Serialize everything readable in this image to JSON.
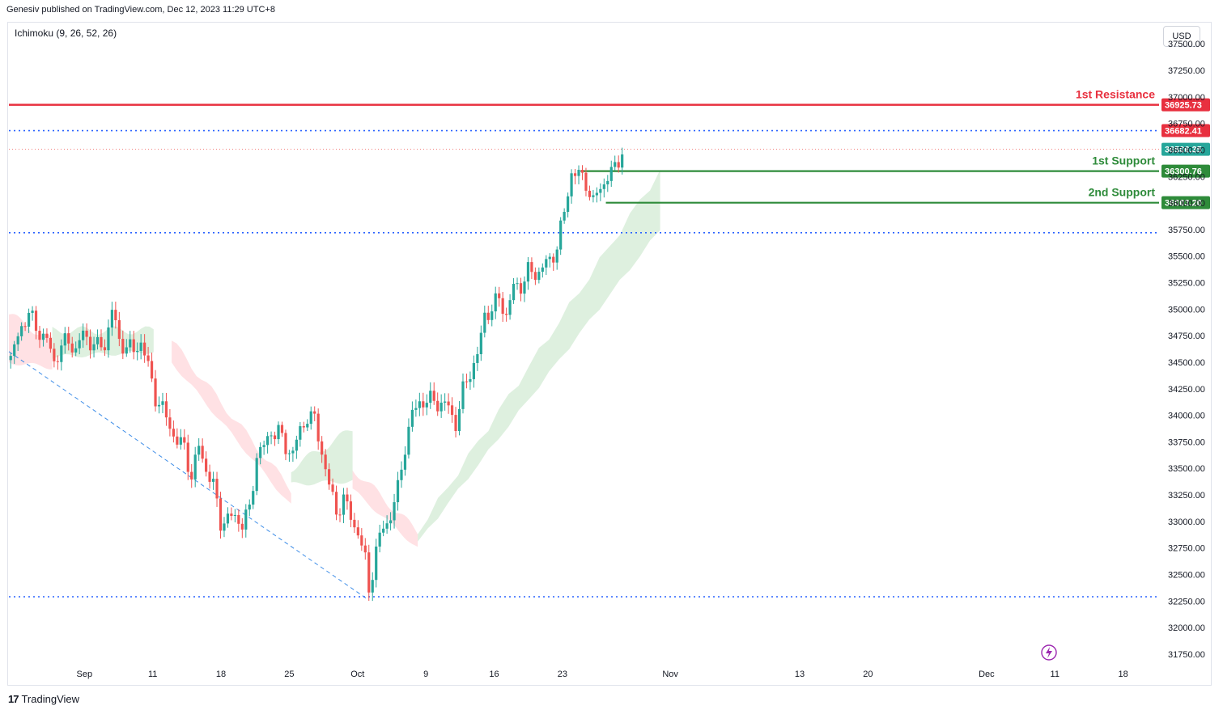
{
  "header": {
    "text": "Genesiv published on TradingView.com, Dec 12, 2023 11:29 UTC+8"
  },
  "indicator": {
    "label": "Ichimoku (9, 26, 52, 26)"
  },
  "currency": "USD",
  "footer": {
    "brand": "TradingView",
    "logo_icon": "tradingview-logo-icon"
  },
  "colors": {
    "up": "#26a69a",
    "down": "#ef5350",
    "resistance": "#e8303f",
    "support": "#2e8b3a",
    "dotted_level": "#2962ff",
    "cloud_bull": "#c8e6c9",
    "cloud_bear": "#ffcdd2",
    "last_price": "#26a69a"
  },
  "chart_data": {
    "type": "candlestick",
    "title": "",
    "price_axis": {
      "ticks": [
        "37500.00",
        "37250.00",
        "37000.00",
        "36750.00",
        "36500.00",
        "36250.00",
        "36000.00",
        "35750.00",
        "35500.00",
        "35250.00",
        "35000.00",
        "34750.00",
        "34500.00",
        "34250.00",
        "34000.00",
        "33750.00",
        "33500.00",
        "33250.00",
        "33000.00",
        "32750.00",
        "32500.00",
        "32250.00",
        "32000.00",
        "31750.00"
      ],
      "ylim": [
        31650,
        37700
      ]
    },
    "time_axis": {
      "ticks": [
        "Sep",
        "11",
        "18",
        "25",
        "Oct",
        "9",
        "16",
        "23",
        "Nov",
        "13",
        "20",
        "Dec",
        "11",
        "18"
      ]
    },
    "levels": [
      {
        "name": "1st Resistance",
        "value": 36925.73,
        "label": "36925.73",
        "annotation": "1st Resistance",
        "style": "solid",
        "role": "resistance"
      },
      {
        "name": "dotted-upper",
        "value": 36682.41,
        "label": "36682.41",
        "annotation": "",
        "style": "dotted",
        "role": "dotted_level"
      },
      {
        "name": "last-price",
        "value": 36506.35,
        "label": "36506.35",
        "annotation": "",
        "style": "dotted-thin",
        "role": "last_price"
      },
      {
        "name": "1st Support",
        "value": 36300.76,
        "label": "36300.76",
        "annotation": "1st Support",
        "style": "solid",
        "role": "support"
      },
      {
        "name": "2nd Support",
        "value": 36003.2,
        "label": "36003.20",
        "annotation": "2nd Support",
        "style": "solid",
        "role": "support"
      },
      {
        "name": "dotted-mid",
        "value": 35720,
        "label": "",
        "annotation": "",
        "style": "dotted",
        "role": "dotted_level"
      },
      {
        "name": "dotted-low",
        "value": 32290,
        "label": "",
        "annotation": "",
        "style": "dotted",
        "role": "dotted_level"
      }
    ],
    "trendline": {
      "from": [
        0,
        34600
      ],
      "to": [
        99,
        32270
      ],
      "style": "dashed"
    },
    "close_path": [
      [
        0,
        34520
      ],
      [
        3,
        34850
      ],
      [
        5,
        34950
      ],
      [
        7,
        34830
      ],
      [
        10,
        34700
      ],
      [
        12,
        34510
      ],
      [
        14,
        34650
      ],
      [
        16,
        34700
      ],
      [
        18,
        34620
      ],
      [
        20,
        34760
      ],
      [
        22,
        34700
      ],
      [
        24,
        34640
      ],
      [
        26,
        34670
      ],
      [
        28,
        34990
      ],
      [
        30,
        34700
      ],
      [
        32,
        34650
      ],
      [
        34,
        34600
      ],
      [
        36,
        34700
      ],
      [
        38,
        34450
      ],
      [
        40,
        34180
      ],
      [
        42,
        34050
      ],
      [
        44,
        33900
      ],
      [
        46,
        33750
      ],
      [
        48,
        33700
      ],
      [
        50,
        33420
      ],
      [
        52,
        33700
      ],
      [
        54,
        33500
      ],
      [
        56,
        33330
      ],
      [
        58,
        33000
      ],
      [
        60,
        33020
      ],
      [
        62,
        33050
      ],
      [
        64,
        32980
      ],
      [
        66,
        33100
      ],
      [
        68,
        33630
      ],
      [
        70,
        33700
      ],
      [
        72,
        33850
      ],
      [
        74,
        33840
      ],
      [
        76,
        33700
      ],
      [
        78,
        33650
      ],
      [
        80,
        33850
      ],
      [
        82,
        34000
      ],
      [
        84,
        33950
      ],
      [
        86,
        33660
      ],
      [
        88,
        33330
      ],
      [
        90,
        33100
      ],
      [
        92,
        33200
      ],
      [
        94,
        33050
      ],
      [
        96,
        32890
      ],
      [
        98,
        32630
      ],
      [
        99,
        32360
      ],
      [
        101,
        32720
      ],
      [
        103,
        32950
      ],
      [
        105,
        33050
      ],
      [
        107,
        33300
      ],
      [
        109,
        33720
      ],
      [
        111,
        34000
      ],
      [
        113,
        34140
      ],
      [
        115,
        34120
      ],
      [
        117,
        34150
      ],
      [
        119,
        34100
      ],
      [
        121,
        34080
      ],
      [
        123,
        33920
      ],
      [
        125,
        34220
      ],
      [
        127,
        34420
      ],
      [
        129,
        34550
      ],
      [
        131,
        34950
      ],
      [
        133,
        35000
      ],
      [
        135,
        35100
      ],
      [
        137,
        34950
      ],
      [
        139,
        35200
      ],
      [
        141,
        35230
      ],
      [
        143,
        35350
      ],
      [
        145,
        35330
      ],
      [
        147,
        35400
      ],
      [
        149,
        35450
      ],
      [
        151,
        35600
      ],
      [
        153,
        35900
      ],
      [
        155,
        36300
      ],
      [
        157,
        36260
      ],
      [
        159,
        36200
      ],
      [
        161,
        36000
      ],
      [
        163,
        36150
      ],
      [
        165,
        36250
      ],
      [
        167,
        36320
      ],
      [
        169,
        36506
      ]
    ],
    "candle_count": 170,
    "ichimoku_cloud_segments": [
      {
        "sentiment": "bear",
        "from_index": 0,
        "to_index": 12,
        "upper": [
          34950,
          34700
        ],
        "lower": [
          34500,
          34450
        ]
      },
      {
        "sentiment": "bull",
        "from_index": 12,
        "to_index": 40,
        "upper": [
          34800,
          34800
        ],
        "lower": [
          34550,
          34600
        ]
      },
      {
        "sentiment": "bear",
        "from_index": 45,
        "to_index": 78,
        "upper": [
          34700,
          33300
        ],
        "lower": [
          34500,
          33150
        ]
      },
      {
        "sentiment": "bull",
        "from_index": 78,
        "to_index": 95,
        "upper": [
          33500,
          33870
        ],
        "lower": [
          33350,
          33380
        ]
      },
      {
        "sentiment": "bear",
        "from_index": 95,
        "to_index": 113,
        "upper": [
          33500,
          32900
        ],
        "lower": [
          33300,
          32750
        ]
      },
      {
        "sentiment": "bull",
        "from_index": 113,
        "to_index": 180,
        "upper": [
          32900,
          36300
        ],
        "lower": [
          32800,
          35750
        ]
      }
    ]
  }
}
